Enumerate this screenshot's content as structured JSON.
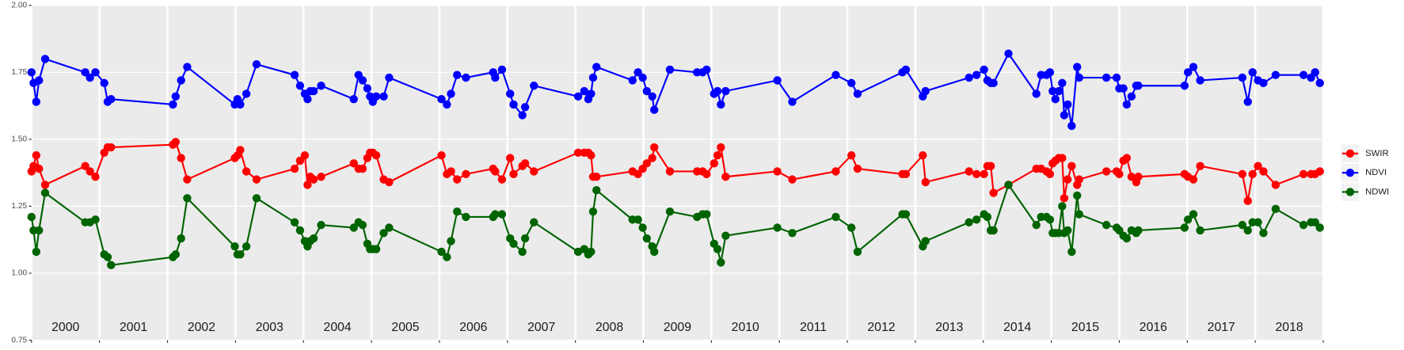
{
  "chart_data": {
    "type": "line",
    "x": [
      2000.0,
      2000.03,
      2000.07,
      2000.11,
      2000.2,
      2000.79,
      2000.86,
      2000.94,
      2001.07,
      2001.12,
      2001.17,
      2002.08,
      2002.12,
      2002.2,
      2002.29,
      2002.99,
      2003.03,
      2003.07,
      2003.16,
      2003.31,
      2003.87,
      2003.95,
      2004.02,
      2004.06,
      2004.1,
      2004.15,
      2004.26,
      2004.74,
      2004.81,
      2004.87,
      2004.94,
      2004.98,
      2005.02,
      2005.07,
      2005.18,
      2005.26,
      2006.03,
      2006.11,
      2006.17,
      2006.26,
      2006.39,
      2006.79,
      2006.82,
      2006.92,
      2007.04,
      2007.09,
      2007.22,
      2007.26,
      2007.39,
      2008.04,
      2008.13,
      2008.19,
      2008.23,
      2008.26,
      2008.31,
      2008.84,
      2008.92,
      2008.99,
      2009.05,
      2009.13,
      2009.16,
      2009.39,
      2009.79,
      2009.87,
      2009.93,
      2010.04,
      2010.09,
      2010.14,
      2010.21,
      2010.97,
      2011.19,
      2011.83,
      2012.06,
      2012.15,
      2012.81,
      2012.86,
      2013.11,
      2013.15,
      2013.79,
      2013.9,
      2014.01,
      2014.06,
      2014.11,
      2014.15,
      2014.37,
      2014.78,
      2014.85,
      2014.93,
      2014.98,
      2015.02,
      2015.06,
      2015.11,
      2015.16,
      2015.19,
      2015.24,
      2015.3,
      2015.38,
      2015.41,
      2015.81,
      2015.96,
      2016.0,
      2016.06,
      2016.11,
      2016.18,
      2016.25,
      2016.28,
      2016.96,
      2017.01,
      2017.09,
      2017.19,
      2017.81,
      2017.89,
      2017.96,
      2018.04,
      2018.12,
      2018.3,
      2018.71,
      2018.82,
      2018.88,
      2018.95
    ],
    "series": [
      {
        "name": "SWIR",
        "color": "#ff0000",
        "values": [
          1.38,
          1.4,
          1.44,
          1.39,
          1.33,
          1.4,
          1.38,
          1.36,
          1.45,
          1.47,
          1.47,
          1.48,
          1.49,
          1.43,
          1.35,
          1.43,
          1.44,
          1.46,
          1.38,
          1.35,
          1.39,
          1.42,
          1.44,
          1.33,
          1.36,
          1.35,
          1.36,
          1.41,
          1.39,
          1.39,
          1.43,
          1.45,
          1.45,
          1.44,
          1.35,
          1.34,
          1.44,
          1.37,
          1.38,
          1.35,
          1.37,
          1.39,
          1.38,
          1.35,
          1.43,
          1.37,
          1.4,
          1.41,
          1.38,
          1.45,
          1.45,
          1.45,
          1.44,
          1.36,
          1.36,
          1.38,
          1.37,
          1.39,
          1.41,
          1.43,
          1.47,
          1.38,
          1.38,
          1.38,
          1.37,
          1.41,
          1.44,
          1.47,
          1.36,
          1.38,
          1.35,
          1.38,
          1.44,
          1.39,
          1.37,
          1.37,
          1.44,
          1.34,
          1.38,
          1.37,
          1.37,
          1.4,
          1.4,
          1.3,
          1.33,
          1.39,
          1.39,
          1.38,
          1.37,
          1.41,
          1.42,
          1.43,
          1.43,
          1.28,
          1.35,
          1.4,
          1.33,
          1.35,
          1.38,
          1.38,
          1.37,
          1.42,
          1.43,
          1.36,
          1.34,
          1.36,
          1.37,
          1.36,
          1.35,
          1.4,
          1.37,
          1.27,
          1.37,
          1.4,
          1.38,
          1.33,
          1.37,
          1.37,
          1.37,
          1.38
        ]
      },
      {
        "name": "NDVI",
        "color": "#0000ff",
        "values": [
          1.75,
          1.71,
          1.64,
          1.72,
          1.8,
          1.75,
          1.73,
          1.75,
          1.71,
          1.64,
          1.65,
          1.63,
          1.66,
          1.72,
          1.77,
          1.63,
          1.65,
          1.63,
          1.67,
          1.78,
          1.74,
          1.7,
          1.67,
          1.65,
          1.68,
          1.68,
          1.7,
          1.65,
          1.74,
          1.72,
          1.69,
          1.66,
          1.64,
          1.66,
          1.66,
          1.73,
          1.65,
          1.63,
          1.67,
          1.74,
          1.73,
          1.75,
          1.73,
          1.76,
          1.67,
          1.63,
          1.59,
          1.62,
          1.7,
          1.66,
          1.68,
          1.65,
          1.67,
          1.73,
          1.77,
          1.72,
          1.75,
          1.73,
          1.68,
          1.66,
          1.61,
          1.76,
          1.75,
          1.75,
          1.76,
          1.67,
          1.68,
          1.63,
          1.68,
          1.72,
          1.64,
          1.74,
          1.71,
          1.67,
          1.75,
          1.76,
          1.66,
          1.68,
          1.73,
          1.74,
          1.76,
          1.72,
          1.71,
          1.71,
          1.82,
          1.67,
          1.74,
          1.74,
          1.75,
          1.68,
          1.65,
          1.68,
          1.71,
          1.59,
          1.63,
          1.55,
          1.77,
          1.73,
          1.73,
          1.73,
          1.69,
          1.69,
          1.63,
          1.66,
          1.7,
          1.7,
          1.7,
          1.75,
          1.77,
          1.72,
          1.73,
          1.64,
          1.75,
          1.72,
          1.71,
          1.74,
          1.74,
          1.73,
          1.75,
          1.71
        ]
      },
      {
        "name": "NDWI",
        "color": "#006400",
        "values": [
          1.21,
          1.16,
          1.08,
          1.16,
          1.3,
          1.19,
          1.19,
          1.2,
          1.07,
          1.06,
          1.03,
          1.06,
          1.07,
          1.13,
          1.28,
          1.1,
          1.07,
          1.07,
          1.1,
          1.28,
          1.19,
          1.16,
          1.12,
          1.1,
          1.12,
          1.13,
          1.18,
          1.17,
          1.19,
          1.18,
          1.11,
          1.09,
          1.09,
          1.09,
          1.15,
          1.17,
          1.08,
          1.06,
          1.12,
          1.23,
          1.21,
          1.21,
          1.22,
          1.22,
          1.13,
          1.11,
          1.08,
          1.13,
          1.19,
          1.08,
          1.09,
          1.07,
          1.08,
          1.23,
          1.31,
          1.2,
          1.2,
          1.17,
          1.13,
          1.1,
          1.08,
          1.23,
          1.21,
          1.22,
          1.22,
          1.11,
          1.09,
          1.04,
          1.14,
          1.17,
          1.15,
          1.21,
          1.17,
          1.08,
          1.22,
          1.22,
          1.1,
          1.12,
          1.19,
          1.2,
          1.22,
          1.21,
          1.16,
          1.16,
          1.33,
          1.18,
          1.21,
          1.21,
          1.2,
          1.15,
          1.15,
          1.15,
          1.25,
          1.15,
          1.16,
          1.08,
          1.29,
          1.22,
          1.18,
          1.17,
          1.16,
          1.14,
          1.13,
          1.16,
          1.15,
          1.16,
          1.17,
          1.2,
          1.22,
          1.16,
          1.18,
          1.16,
          1.19,
          1.19,
          1.15,
          1.24,
          1.18,
          1.19,
          1.19,
          1.17
        ]
      }
    ],
    "xlim": [
      2000,
      2019
    ],
    "xticks": [
      2000,
      2001,
      2002,
      2003,
      2004,
      2005,
      2006,
      2007,
      2008,
      2009,
      2010,
      2011,
      2012,
      2013,
      2014,
      2015,
      2016,
      2017,
      2018,
      2019
    ],
    "year_labels": [
      {
        "value": 2000.5,
        "label": "2000"
      },
      {
        "value": 2001.5,
        "label": "2001"
      },
      {
        "value": 2002.5,
        "label": "2002"
      },
      {
        "value": 2003.5,
        "label": "2003"
      },
      {
        "value": 2004.5,
        "label": "2004"
      },
      {
        "value": 2005.5,
        "label": "2005"
      },
      {
        "value": 2006.5,
        "label": "2006"
      },
      {
        "value": 2007.5,
        "label": "2007"
      },
      {
        "value": 2008.5,
        "label": "2008"
      },
      {
        "value": 2009.5,
        "label": "2009"
      },
      {
        "value": 2010.5,
        "label": "2010"
      },
      {
        "value": 2011.5,
        "label": "2011"
      },
      {
        "value": 2012.5,
        "label": "2012"
      },
      {
        "value": 2013.5,
        "label": "2013"
      },
      {
        "value": 2014.5,
        "label": "2014"
      },
      {
        "value": 2015.5,
        "label": "2015"
      },
      {
        "value": 2016.5,
        "label": "2016"
      },
      {
        "value": 2017.5,
        "label": "2017"
      },
      {
        "value": 2018.5,
        "label": "2018"
      }
    ],
    "ylim": [
      0.75,
      2.0
    ],
    "yticks": [
      0.75,
      {
        "value": 1,
        "label": "1.00"
      },
      1.25,
      {
        "value": 1.5,
        "label": "1.50"
      },
      1.75,
      {
        "value": 2,
        "label": "2.00"
      }
    ],
    "grid": true,
    "legend": "right"
  }
}
